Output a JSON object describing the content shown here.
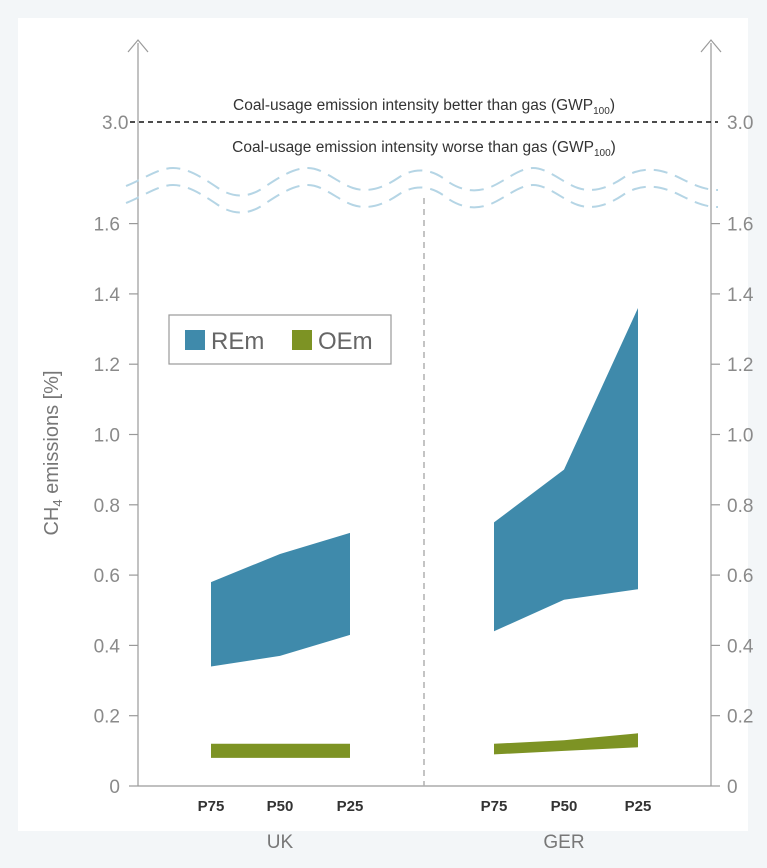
{
  "chart_data": {
    "type": "area",
    "ylabel_base": "CH",
    "ylabel_sub": "4",
    "ylabel_rest": " emissions [%]",
    "ylim": [
      0,
      1.7
    ],
    "yticks": [
      "0",
      "0.2",
      "0.4",
      "0.6",
      "0.8",
      "1.0",
      "1.2",
      "1.4",
      "1.6"
    ],
    "ytick_values": [
      0,
      0.2,
      0.4,
      0.6,
      0.8,
      1.0,
      1.2,
      1.4,
      1.6
    ],
    "axis_break": true,
    "threshold": {
      "value": 3.0,
      "tick_label": "3.0",
      "label_above": "Coal-usage emission intensity better than gas (GWP",
      "label_below": "Coal-usage emission intensity worse than gas (GWP",
      "label_sub": "100",
      "label_close": ")"
    },
    "categories": [
      "P75",
      "P50",
      "P25"
    ],
    "groups": [
      {
        "name": "UK",
        "REm": {
          "low": [
            0.34,
            0.37,
            0.43
          ],
          "high": [
            0.58,
            0.66,
            0.72
          ]
        },
        "OEm": {
          "low": [
            0.08,
            0.08,
            0.08
          ],
          "high": [
            0.12,
            0.12,
            0.12
          ]
        }
      },
      {
        "name": "GER",
        "REm": {
          "low": [
            0.44,
            0.53,
            0.56
          ],
          "high": [
            0.75,
            0.9,
            1.36
          ]
        },
        "OEm": {
          "low": [
            0.09,
            0.1,
            0.11
          ],
          "high": [
            0.12,
            0.13,
            0.15
          ]
        }
      }
    ],
    "legend": {
      "position": "top-left",
      "items": [
        {
          "label": "REm",
          "color": "#3f8aab"
        },
        {
          "label": "OEm",
          "color": "#7d9324"
        }
      ]
    },
    "colors": {
      "axis": "#9a9a9a",
      "break_line": "#b5d5e5",
      "divider": "#b0b0b0",
      "threshold_line": "#111111"
    }
  }
}
